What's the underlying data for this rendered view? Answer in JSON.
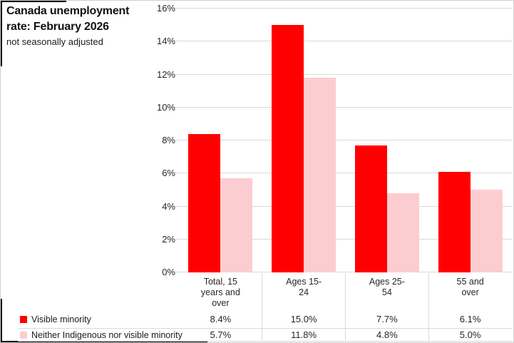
{
  "chart_data": {
    "type": "bar",
    "title": "Canada unemployment rate: February 2026",
    "subtitle": "not seasonally adjusted",
    "categories": [
      "Total, 15 years and over",
      "Ages 15-24",
      "Ages 25-54",
      "55 and over"
    ],
    "category_label_lines": [
      [
        "Total, 15",
        "years and",
        "over"
      ],
      [
        "Ages 15-",
        "24"
      ],
      [
        "Ages 25-",
        "54"
      ],
      [
        "55 and",
        "over"
      ]
    ],
    "series": [
      {
        "name": "Visible minority",
        "color": "#ff0000",
        "values": [
          8.4,
          15.0,
          7.7,
          6.1
        ],
        "value_labels": [
          "8.4%",
          "15.0%",
          "7.7%",
          "6.1%"
        ]
      },
      {
        "name": "Neither Indigenous nor visible minority",
        "color": "#fccdd0",
        "values": [
          5.7,
          11.8,
          4.8,
          5.0
        ],
        "value_labels": [
          "5.7%",
          "11.8%",
          "4.8%",
          "5.0%"
        ]
      }
    ],
    "y_axis": {
      "min": 0,
      "max": 16,
      "step": 2,
      "tick_labels": [
        "0%",
        "2%",
        "4%",
        "6%",
        "8%",
        "10%",
        "12%",
        "14%",
        "16%"
      ]
    },
    "grid": true,
    "legend_position": "bottom-left",
    "colors": {
      "gridline": "#d9d9d9",
      "axis_text": "#262626",
      "table_line": "#d9d9d9"
    }
  }
}
